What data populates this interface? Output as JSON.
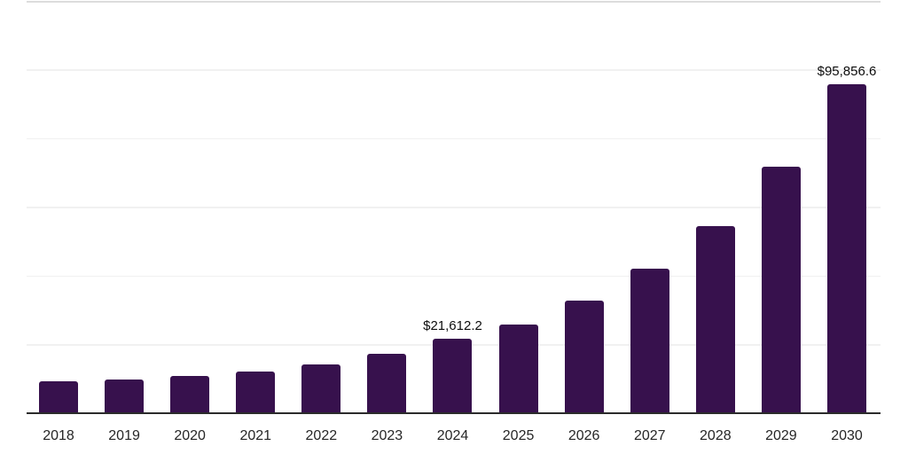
{
  "chart_data": {
    "type": "bar",
    "title": "",
    "xlabel": "",
    "ylabel": "",
    "categories": [
      "2018",
      "2019",
      "2020",
      "2021",
      "2022",
      "2023",
      "2024",
      "2025",
      "2026",
      "2027",
      "2028",
      "2029",
      "2030"
    ],
    "values": [
      9300,
      9800,
      10800,
      12200,
      14300,
      17200,
      21612.2,
      25700,
      32800,
      42000,
      54400,
      71800,
      95856.6
    ],
    "labeled_points": [
      {
        "category": "2024",
        "label": "$21,612.2"
      },
      {
        "category": "2030",
        "label": "$95,856.6"
      }
    ],
    "ylim": [
      0,
      120000
    ],
    "gridline_step": 20000,
    "grid": true,
    "legend": "none",
    "colors": {
      "bar": "#37114D",
      "axis_line": "#2B2B2B",
      "gridline": "#F1F1F1",
      "top_border": "#DCDCDC",
      "tick_label": "#262626",
      "value_label": "#0D0D0D",
      "background": "#FFFFFF"
    }
  }
}
